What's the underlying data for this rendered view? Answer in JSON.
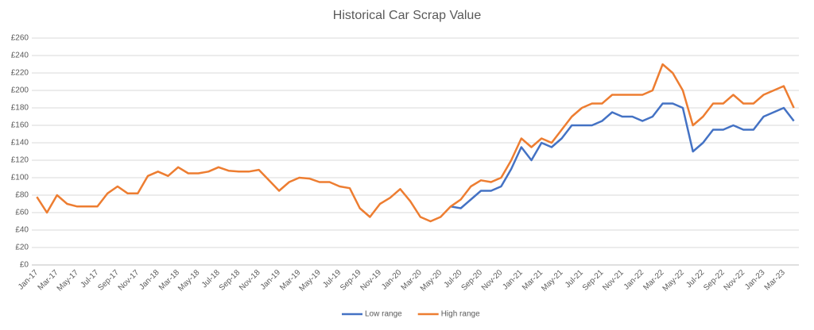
{
  "chart_data": {
    "type": "line",
    "title": "Historical Car Scrap Value",
    "categories": [
      "Jan-17",
      null,
      "Mar-17",
      null,
      "May-17",
      null,
      "Jul-17",
      null,
      "Sep-17",
      null,
      "Nov-17",
      null,
      "Jan-18",
      null,
      "Mar-18",
      null,
      "May-18",
      null,
      "Jul-18",
      null,
      "Sep-18",
      null,
      "Nov-18",
      null,
      "Jan-19",
      null,
      "Mar-19",
      null,
      "May-19",
      null,
      "Jul-19",
      null,
      "Sep-19",
      null,
      "Nov-19",
      null,
      "Jan-20",
      null,
      "Mar-20",
      null,
      "May-20",
      null,
      "Jul-20",
      null,
      "Sep-20",
      null,
      "Nov-20",
      null,
      "Jan-21",
      null,
      "Mar-21",
      null,
      "May-21",
      null,
      "Jul-21",
      null,
      "Sep-21",
      null,
      "Nov-21",
      null,
      "Jan-22",
      null,
      "Mar-22",
      null,
      "May-22",
      null,
      "Jul-22",
      null,
      "Sep-22",
      null,
      "Nov-22",
      null,
      "Jan-23",
      null,
      "Mar-23",
      null
    ],
    "series": [
      {
        "name": "Low range",
        "color": "#4472c4",
        "values": [
          null,
          null,
          null,
          null,
          null,
          null,
          null,
          null,
          null,
          null,
          null,
          null,
          null,
          null,
          null,
          null,
          null,
          null,
          null,
          null,
          null,
          null,
          null,
          null,
          null,
          null,
          null,
          null,
          null,
          null,
          null,
          null,
          null,
          null,
          null,
          null,
          null,
          null,
          null,
          null,
          null,
          67,
          65,
          75,
          85,
          85,
          90,
          110,
          135,
          120,
          140,
          135,
          145,
          160,
          160,
          160,
          165,
          175,
          170,
          170,
          165,
          170,
          185,
          185,
          180,
          130,
          140,
          155,
          155,
          160,
          155,
          155,
          170,
          175,
          180,
          165
        ]
      },
      {
        "name": "High range",
        "color": "#ed7d31",
        "values": [
          78,
          60,
          80,
          70,
          67,
          67,
          67,
          82,
          90,
          82,
          82,
          102,
          107,
          102,
          112,
          105,
          105,
          107,
          112,
          108,
          107,
          107,
          109,
          97,
          85,
          95,
          100,
          99,
          95,
          95,
          90,
          88,
          65,
          55,
          70,
          77,
          87,
          73,
          55,
          50,
          55,
          67,
          75,
          90,
          97,
          95,
          100,
          120,
          145,
          135,
          145,
          140,
          155,
          170,
          180,
          185,
          185,
          195,
          195,
          195,
          195,
          200,
          230,
          220,
          200,
          160,
          170,
          185,
          185,
          195,
          185,
          185,
          195,
          200,
          205,
          180
        ]
      }
    ],
    "ylim": [
      0,
      260
    ],
    "yticks": [
      {
        "value": 0,
        "label": "£0"
      },
      {
        "value": 20,
        "label": "£20"
      },
      {
        "value": 40,
        "label": "£40"
      },
      {
        "value": 60,
        "label": "£60"
      },
      {
        "value": 80,
        "label": "£80"
      },
      {
        "value": 100,
        "label": "£100"
      },
      {
        "value": 120,
        "label": "£120"
      },
      {
        "value": 140,
        "label": "£140"
      },
      {
        "value": 160,
        "label": "£160"
      },
      {
        "value": 180,
        "label": "£180"
      },
      {
        "value": 200,
        "label": "£200"
      },
      {
        "value": 220,
        "label": "£220"
      },
      {
        "value": 240,
        "label": "£240"
      },
      {
        "value": 260,
        "label": "£260"
      }
    ],
    "grid": true,
    "legend": "bottom"
  }
}
